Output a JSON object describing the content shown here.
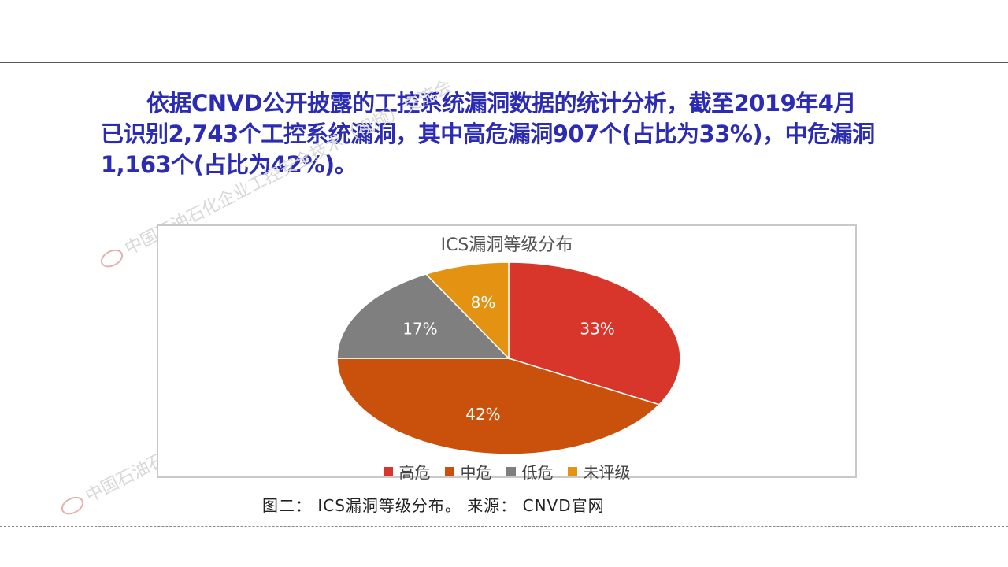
{
  "headline": {
    "line1": "依据CNVD公开披露的工控系统漏洞数据的统计分析，截至2019年4月",
    "line2": "已识别2,743个工控系统漏洞，其中高危漏洞907个(占比为33%)，中危漏洞",
    "line3": "1,163个(占比为42%)。"
  },
  "caption": "图二：  ICS漏洞等级分布。 来源： CNVD官网",
  "watermark": {
    "text1": "中国石油石化企业工控安全技术（视频）交流会",
    "text2": "中国石油石化企业工控安全技术（视频）交流会"
  },
  "chart_data": {
    "type": "pie",
    "title": "ICS漏洞等级分布",
    "categories": [
      "高危",
      "中危",
      "低危",
      "未评级"
    ],
    "values": [
      33,
      42,
      17,
      8
    ],
    "data_labels": [
      "33%",
      "42%",
      "17%",
      "8%"
    ],
    "colors": [
      "#d9362b",
      "#c9510c",
      "#7f7f7f",
      "#e39211"
    ],
    "legend_position": "bottom"
  }
}
